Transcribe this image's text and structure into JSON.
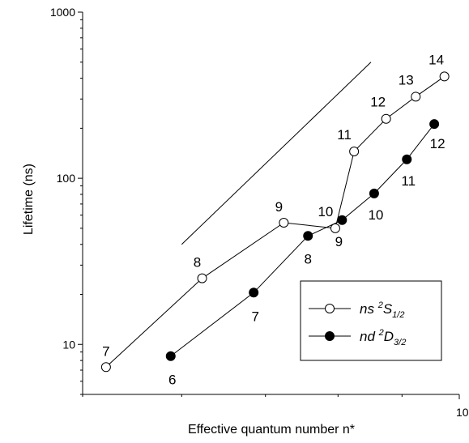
{
  "chart_data": {
    "type": "scatter",
    "xscale": "log",
    "yscale": "log",
    "xlim": [
      5,
      10
    ],
    "ylim": [
      5,
      1000
    ],
    "xlabel": "Effective quantum number n*",
    "ylabel": "Lifetime (ns)",
    "x_tick_labels": [
      "10"
    ],
    "y_tick_labels": [
      "10",
      "100",
      "1000"
    ],
    "grid": false,
    "legend_position": "bottom-right",
    "reference_line": {
      "x": [
        6.0,
        8.5
      ],
      "y": [
        40,
        500
      ],
      "label": ""
    },
    "series": [
      {
        "name": "ns 2S1/2",
        "legend": {
          "main": "ns",
          "sup": "2",
          "term": "S",
          "sub": "1/2"
        },
        "marker": "open-circle",
        "color": "#000000",
        "points": [
          {
            "x": 5.22,
            "y": 7.3,
            "label": "7"
          },
          {
            "x": 6.23,
            "y": 25,
            "label": "8"
          },
          {
            "x": 7.24,
            "y": 54,
            "label": "9"
          },
          {
            "x": 7.96,
            "y": 50,
            "label": "10"
          },
          {
            "x": 8.24,
            "y": 145,
            "label": "11"
          },
          {
            "x": 8.74,
            "y": 228,
            "label": "12"
          },
          {
            "x": 9.23,
            "y": 310,
            "label": "13"
          },
          {
            "x": 9.73,
            "y": 410,
            "label": "14"
          }
        ]
      },
      {
        "name": "nd 2D3/2",
        "legend": {
          "main": "nd",
          "sup": "2",
          "term": "D",
          "sub": "3/2"
        },
        "marker": "filled-circle",
        "color": "#000000",
        "points": [
          {
            "x": 5.88,
            "y": 8.5,
            "label": "6"
          },
          {
            "x": 6.85,
            "y": 20.5,
            "label": "7"
          },
          {
            "x": 7.57,
            "y": 45,
            "label": "8"
          },
          {
            "x": 8.06,
            "y": 56,
            "label": "9"
          },
          {
            "x": 8.55,
            "y": 81,
            "label": "10"
          },
          {
            "x": 9.08,
            "y": 130,
            "label": "11"
          },
          {
            "x": 9.55,
            "y": 212,
            "label": "12"
          }
        ]
      }
    ]
  }
}
